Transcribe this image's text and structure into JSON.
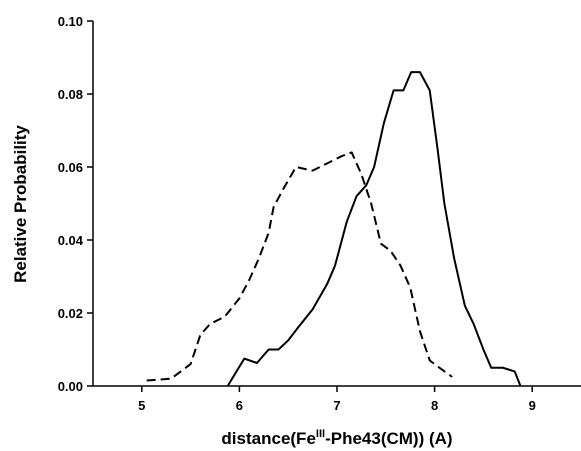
{
  "chart_data": {
    "type": "line",
    "xlabel": [
      "distance(Fe",
      "III",
      "-Phe43(CM)) (A)"
    ],
    "ylabel": "Relative Probability",
    "xlim": [
      4.5,
      9.5
    ],
    "xticks": [
      5,
      6,
      7,
      8,
      9
    ],
    "ylim": [
      0,
      0.1
    ],
    "yticks": [
      {
        "value": 0,
        "label": "0.00"
      },
      {
        "value": 0.02,
        "label": "0.02"
      },
      {
        "value": 0.04,
        "label": "0.04"
      },
      {
        "value": 0.06,
        "label": "0.06"
      },
      {
        "value": 0.08,
        "label": "0.08"
      },
      {
        "value": 0.1,
        "label": "0.10"
      }
    ],
    "series": [
      {
        "color": "#000000",
        "linestyle": "solid",
        "x": [
          5.88,
          6.05,
          6.18,
          6.3,
          6.4,
          6.5,
          6.6,
          6.75,
          6.9,
          6.98,
          7.1,
          7.2,
          7.3,
          7.38,
          7.48,
          7.58,
          7.68,
          7.76,
          7.85,
          7.95,
          8.03,
          8.1,
          8.2,
          8.31,
          8.4,
          8.5,
          8.58,
          8.7,
          8.82,
          8.88
        ],
        "values": [
          0,
          0.0075,
          0.0063,
          0.01,
          0.01,
          0.0125,
          0.016,
          0.021,
          0.028,
          0.033,
          0.045,
          0.052,
          0.055,
          0.06,
          0.072,
          0.081,
          0.081,
          0.086,
          0.086,
          0.081,
          0.065,
          0.05,
          0.035,
          0.022,
          0.017,
          0.01,
          0.005,
          0.005,
          0.004,
          0
        ]
      },
      {
        "color": "#000000",
        "linestyle": "dashed",
        "x": [
          5.05,
          5.3,
          5.5,
          5.6,
          5.7,
          5.85,
          6.0,
          6.1,
          6.2,
          6.3,
          6.35,
          6.45,
          6.58,
          6.75,
          6.9,
          7.05,
          7.15,
          7.25,
          7.35,
          7.45,
          7.55,
          7.65,
          7.75,
          7.85,
          7.95,
          8.05,
          8.18
        ],
        "values": [
          0.0015,
          0.002,
          0.006,
          0.014,
          0.017,
          0.019,
          0.024,
          0.029,
          0.035,
          0.042,
          0.049,
          0.054,
          0.06,
          0.059,
          0.061,
          0.063,
          0.064,
          0.058,
          0.05,
          0.039,
          0.037,
          0.033,
          0.027,
          0.015,
          0.007,
          0.005,
          0.0025
        ]
      }
    ]
  }
}
